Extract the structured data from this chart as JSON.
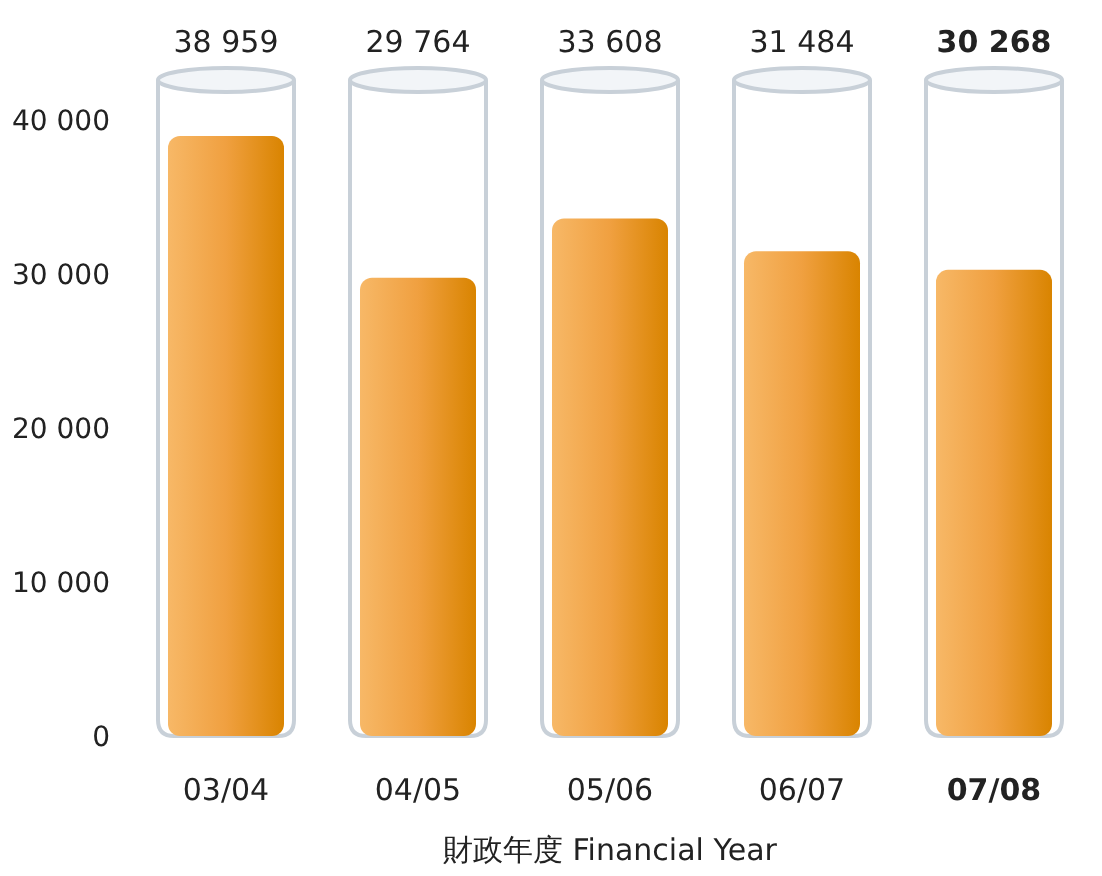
{
  "chart_data": {
    "type": "bar",
    "xlabel": "財政年度 Financial Year",
    "categories": [
      "03/04",
      "04/05",
      "05/06",
      "06/07",
      "**07/08**"
    ],
    "values": [
      38959,
      29764,
      33608,
      31484,
      30268
    ],
    "value_labels": [
      "38 959",
      "29 764",
      "33 608",
      "31 484",
      "**30 268**"
    ],
    "color": "#f0a040",
    "ylim": [
      0,
      40000
    ],
    "yticks": [
      {
        "value": 0,
        "label": "0"
      },
      {
        "value": 10000,
        "label": "10 000"
      },
      {
        "value": 20000,
        "label": "20 000"
      },
      {
        "value": 30000,
        "label": "30 000"
      },
      {
        "value": 40000,
        "label": "40 000"
      }
    ],
    "grid": false,
    "legend": false
  }
}
